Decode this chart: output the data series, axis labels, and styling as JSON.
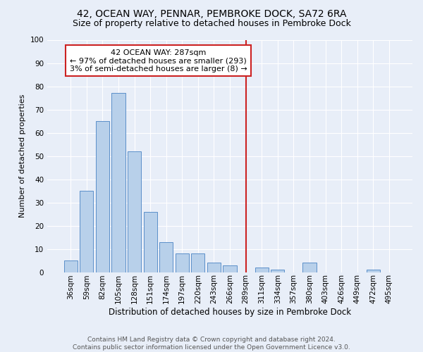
{
  "title": "42, OCEAN WAY, PENNAR, PEMBROKE DOCK, SA72 6RA",
  "subtitle": "Size of property relative to detached houses in Pembroke Dock",
  "xlabel": "Distribution of detached houses by size in Pembroke Dock",
  "ylabel": "Number of detached properties",
  "categories": [
    "36sqm",
    "59sqm",
    "82sqm",
    "105sqm",
    "128sqm",
    "151sqm",
    "174sqm",
    "197sqm",
    "220sqm",
    "243sqm",
    "266sqm",
    "289sqm",
    "311sqm",
    "334sqm",
    "357sqm",
    "380sqm",
    "403sqm",
    "426sqm",
    "449sqm",
    "472sqm",
    "495sqm"
  ],
  "values": [
    5,
    35,
    65,
    77,
    52,
    26,
    13,
    8,
    8,
    4,
    3,
    0,
    2,
    1,
    0,
    4,
    0,
    0,
    0,
    1,
    0
  ],
  "bar_color": "#b8d0ea",
  "bar_edge_color": "#5b8fc9",
  "vline_index": 11,
  "vline_color": "#cc2222",
  "annotation_text": "42 OCEAN WAY: 287sqm\n← 97% of detached houses are smaller (293)\n3% of semi-detached houses are larger (8) →",
  "annotation_box_color": "#cc2222",
  "ylim": [
    0,
    100
  ],
  "yticks": [
    0,
    10,
    20,
    30,
    40,
    50,
    60,
    70,
    80,
    90,
    100
  ],
  "background_color": "#e8eef8",
  "grid_color": "#ffffff",
  "footer_text": "Contains HM Land Registry data © Crown copyright and database right 2024.\nContains public sector information licensed under the Open Government Licence v3.0.",
  "title_fontsize": 10,
  "subtitle_fontsize": 9,
  "xlabel_fontsize": 8.5,
  "ylabel_fontsize": 8,
  "tick_fontsize": 7.5,
  "annotation_fontsize": 8,
  "footer_fontsize": 6.5
}
